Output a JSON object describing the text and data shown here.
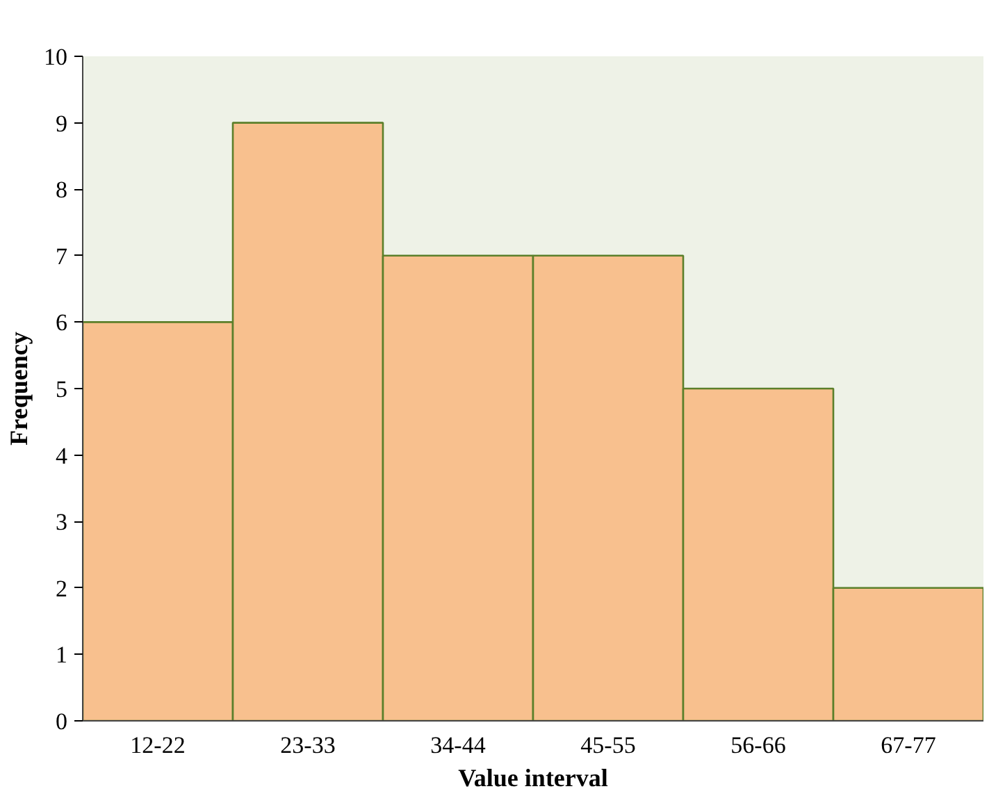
{
  "chart_data": {
    "type": "bar",
    "xlabel": "Value interval",
    "ylabel": "Frequency",
    "categories": [
      "12-22",
      "23-33",
      "34-44",
      "45-55",
      "56-66",
      "67-77"
    ],
    "values": [
      6,
      9,
      7,
      7,
      5,
      2
    ],
    "color": "#f8c08e",
    "ylim": [
      0,
      10
    ],
    "yticks": [
      0,
      1,
      2,
      3,
      4,
      5,
      6,
      7,
      8,
      9,
      10
    ],
    "grid": false
  }
}
